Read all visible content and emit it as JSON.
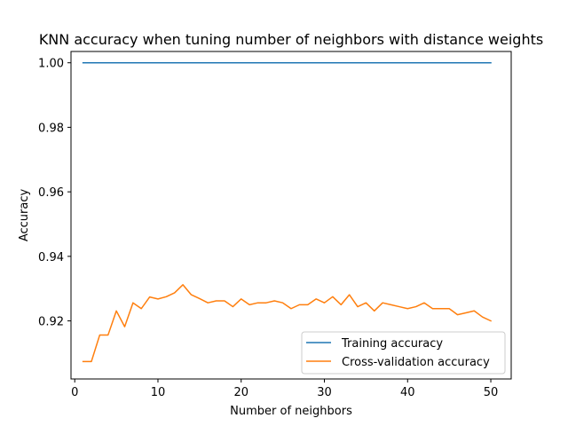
{
  "chart_data": {
    "type": "line",
    "title": "KNN accuracy when tuning number of neighbors with distance weights",
    "xlabel": "Number of neighbors",
    "ylabel": "Accuracy",
    "xlim": [
      -0.45,
      52.45
    ],
    "ylim": [
      0.902,
      1.0035
    ],
    "xticks": [
      0,
      10,
      20,
      30,
      40,
      50
    ],
    "yticks": [
      0.92,
      0.94,
      0.96,
      0.98,
      1.0
    ],
    "ytick_labels": [
      "0.92",
      "0.94",
      "0.96",
      "0.98",
      "1.00"
    ],
    "grid": false,
    "legend": "lower-right",
    "x": [
      1,
      2,
      3,
      4,
      5,
      6,
      7,
      8,
      9,
      10,
      11,
      12,
      13,
      14,
      15,
      16,
      17,
      18,
      19,
      20,
      21,
      22,
      23,
      24,
      25,
      26,
      27,
      28,
      29,
      30,
      31,
      32,
      33,
      34,
      35,
      36,
      37,
      38,
      39,
      40,
      41,
      42,
      43,
      44,
      45,
      46,
      47,
      48,
      49,
      50
    ],
    "series": [
      {
        "name": "Training accuracy",
        "color": "#1f77b4",
        "values": [
          1.0,
          1.0,
          1.0,
          1.0,
          1.0,
          1.0,
          1.0,
          1.0,
          1.0,
          1.0,
          1.0,
          1.0,
          1.0,
          1.0,
          1.0,
          1.0,
          1.0,
          1.0,
          1.0,
          1.0,
          1.0,
          1.0,
          1.0,
          1.0,
          1.0,
          1.0,
          1.0,
          1.0,
          1.0,
          1.0,
          1.0,
          1.0,
          1.0,
          1.0,
          1.0,
          1.0,
          1.0,
          1.0,
          1.0,
          1.0,
          1.0,
          1.0,
          1.0,
          1.0,
          1.0,
          1.0,
          1.0,
          1.0,
          1.0,
          1.0
        ]
      },
      {
        "name": "Cross-validation accuracy",
        "color": "#ff7f0e",
        "values": [
          0.9074,
          0.9074,
          0.9156,
          0.9156,
          0.9231,
          0.9182,
          0.9256,
          0.9238,
          0.9274,
          0.9268,
          0.9275,
          0.9287,
          0.9312,
          0.9281,
          0.9269,
          0.9256,
          0.9262,
          0.9262,
          0.9244,
          0.9268,
          0.925,
          0.9256,
          0.9256,
          0.9262,
          0.9256,
          0.9238,
          0.925,
          0.925,
          0.9268,
          0.9256,
          0.9275,
          0.925,
          0.9281,
          0.9244,
          0.9256,
          0.9231,
          0.9256,
          0.925,
          0.9244,
          0.9238,
          0.9244,
          0.9256,
          0.9238,
          0.9238,
          0.9238,
          0.9219,
          0.9225,
          0.9231,
          0.9212,
          0.92
        ]
      }
    ]
  }
}
